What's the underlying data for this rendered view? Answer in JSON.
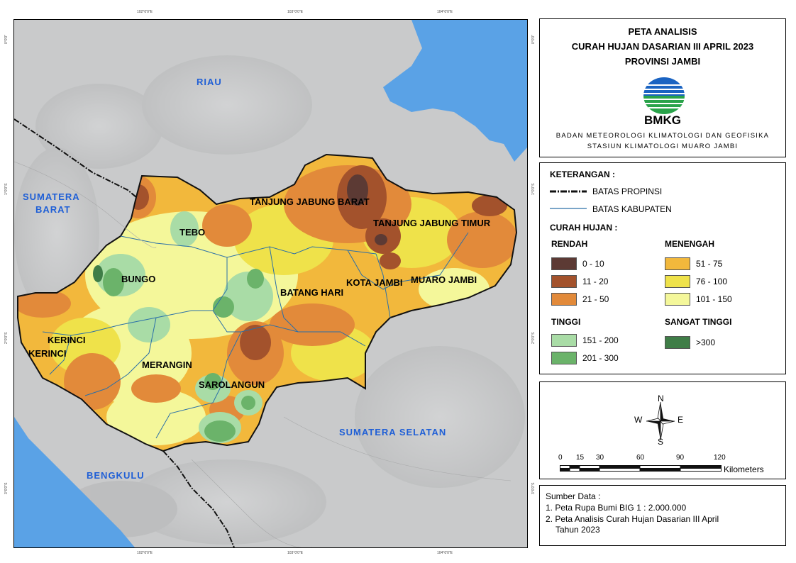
{
  "map": {
    "grid_labels_top": [
      "102°0'0\"E",
      "103°0'0\"E",
      "104°0'0\"E"
    ],
    "grid_labels_bottom": [
      "102°0'0\"E",
      "103°0'0\"E",
      "104°0'0\"E"
    ],
    "grid_labels_left": [
      "0°0'0\"",
      "1°0'0\"S",
      "2°0'0\"S",
      "3°0'0\"S"
    ],
    "grid_labels_right": [
      "0°0'0\"",
      "1°0'0\"S",
      "2°0'0\"S",
      "3°0'0\"S"
    ],
    "region_labels": {
      "riau": "RIAU",
      "sumbar_1": "SUMATERA",
      "sumbar_2": "BARAT",
      "sumsel": "SUMATERA  SELATAN",
      "bengkulu": "BENGKULU"
    },
    "district_labels": {
      "tanjabbar": "TANJUNG JABUNG BARAT",
      "tanjabtim": "TANJUNG JABUNG TIMUR",
      "tebo": "TEBO",
      "bungo": "BUNGO",
      "batanghari": "BATANG HARI",
      "kotajambi": "KOTA JAMBI",
      "muarojambi": "MUARO JAMBI",
      "kerinci_1": "KERINCI",
      "kerinci_2": "KERINCI",
      "merangin": "MERANGIN",
      "sarolangun": "SAROLANGUN"
    }
  },
  "title": {
    "line1": "PETA ANALISIS",
    "line2": "CURAH HUJAN DASARIAN III APRIL 2023",
    "line3": "PROVINSI JAMBI",
    "logo_text": "BMKG",
    "org1": "BADAN METEOROLOGI KLIMATOLOGI DAN GEOFISIKA",
    "org2": "STASIUN KLIMATOLOGI MUARO JAMBI"
  },
  "legend": {
    "heading": "KETERANGAN :",
    "line_provinsi": "BATAS PROPINSI",
    "line_kabupaten": "BATAS KABUPATEN",
    "rain_heading": "CURAH HUJAN :",
    "groups": {
      "rendah": "RENDAH",
      "menengah": "MENENGAH",
      "tinggi": "TINGGI",
      "sangat_tinggi": "SANGAT TINGGI"
    },
    "classes": [
      {
        "label": "0 - 10",
        "color": "#5c3a34"
      },
      {
        "label": "11 - 20",
        "color": "#a3522c"
      },
      {
        "label": "21 - 50",
        "color": "#e28a3a"
      },
      {
        "label": "51 - 75",
        "color": "#f2b83c"
      },
      {
        "label": "76 - 100",
        "color": "#efe24a"
      },
      {
        "label": "101 - 150",
        "color": "#f4f79a"
      },
      {
        "label": "151 - 200",
        "color": "#a9dca6"
      },
      {
        "label": "201 - 300",
        "color": "#6bb36a"
      },
      {
        "label": ">300",
        "color": "#3f7d47"
      }
    ]
  },
  "north_arrow": {
    "n": "N",
    "s": "S",
    "e": "E",
    "w": "W"
  },
  "scale": {
    "ticks": [
      "0",
      "15",
      "30",
      "60",
      "90",
      "120"
    ],
    "unit": "Kilometers"
  },
  "source": {
    "heading": "Sumber Data :",
    "item1": "1. Peta Rupa Bumi BIG 1 : 2.000.000",
    "item2": "2. Peta Analisis Curah Hujan Dasarian III April",
    "item2b": "Tahun 2023"
  },
  "colors": {
    "sea": "#5aa2e6",
    "land": "#c9cacb",
    "province_line": "#111111",
    "district_line": "#2a6fa8"
  }
}
